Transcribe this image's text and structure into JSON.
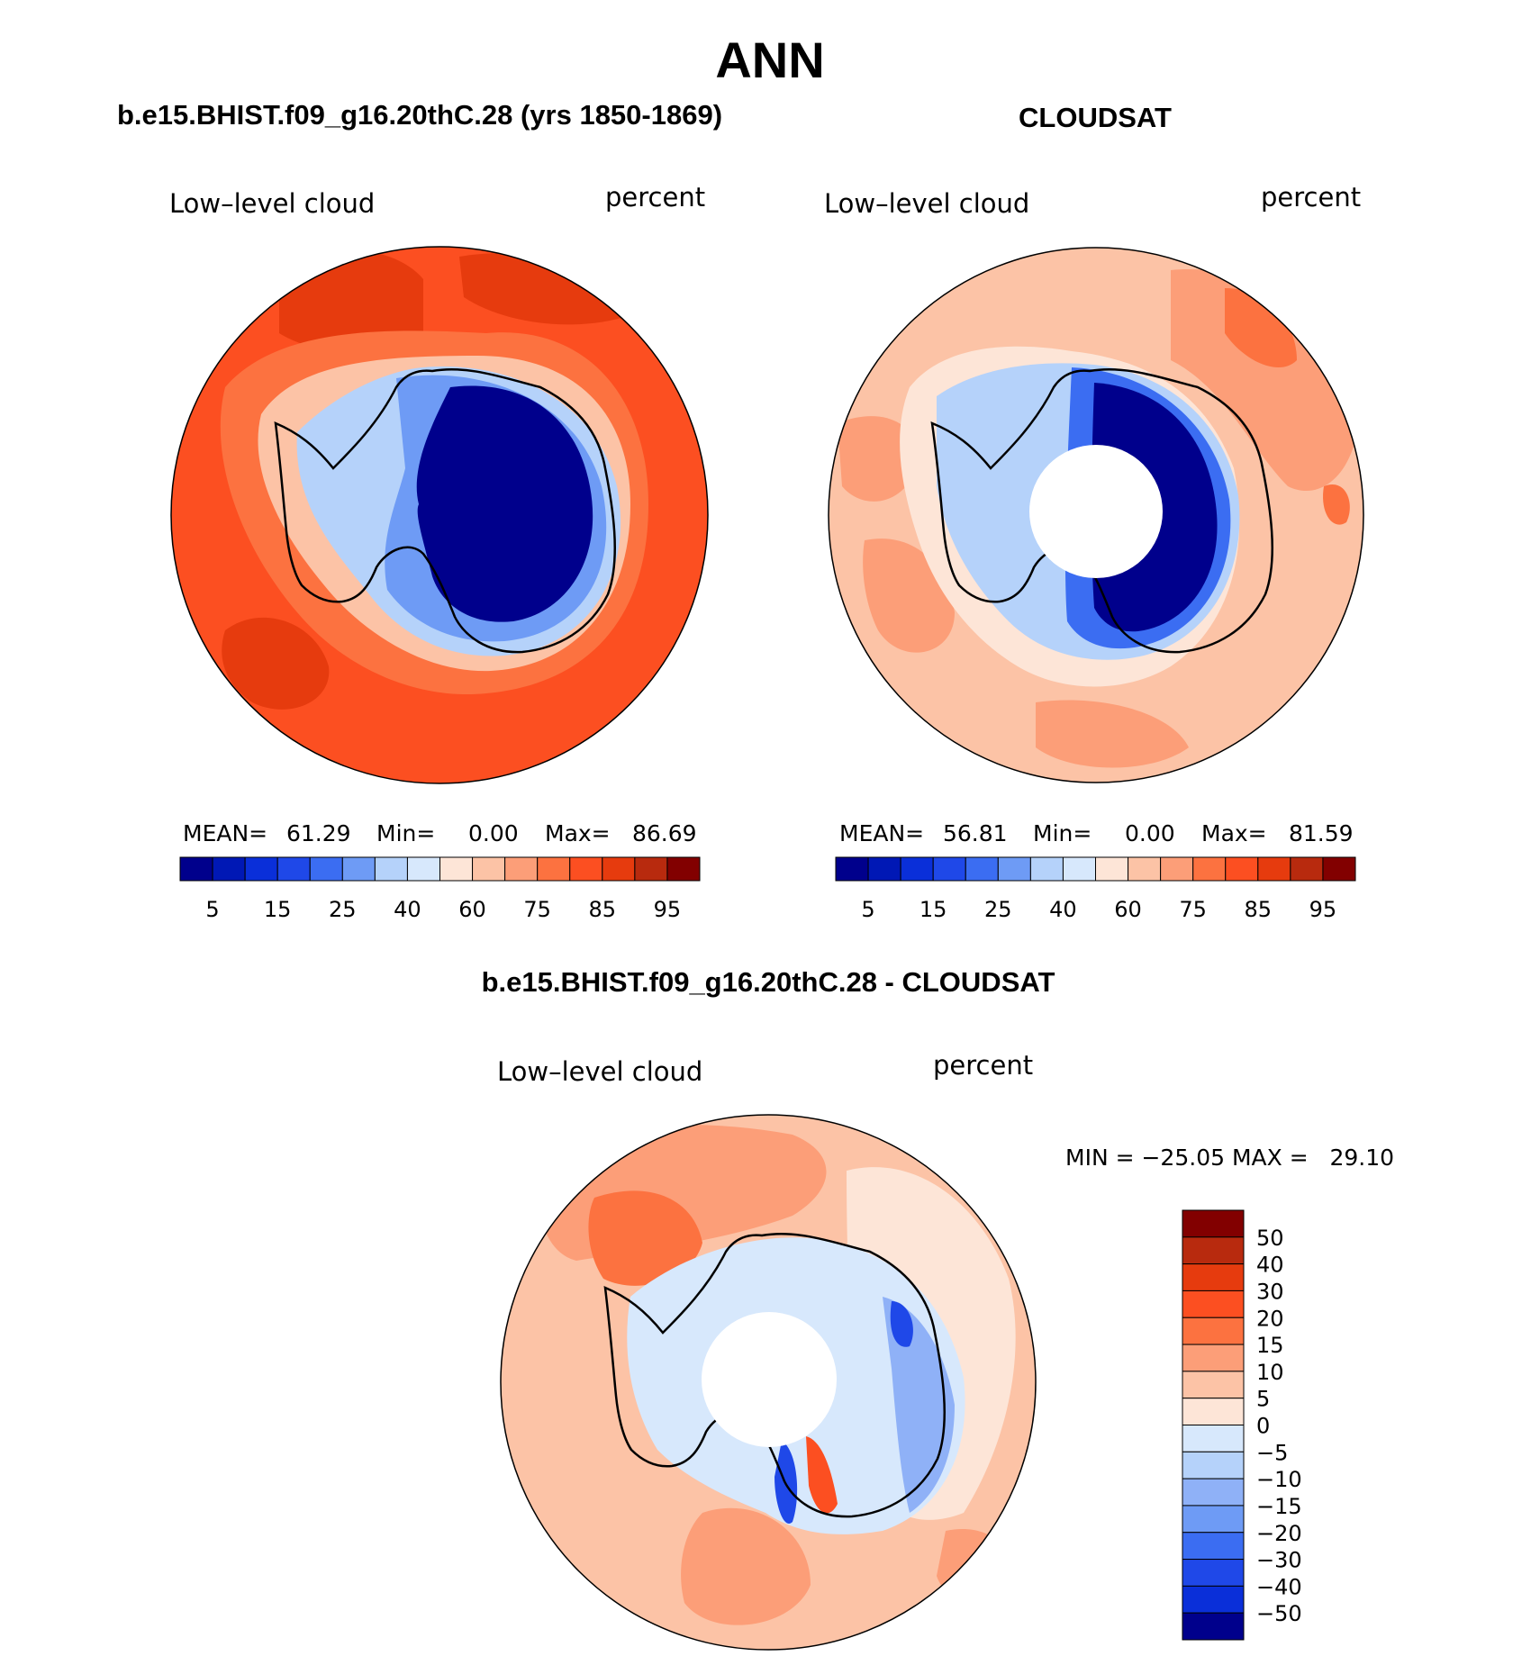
{
  "title": "ANN",
  "panels": [
    {
      "id": "model",
      "header": "b.e15.BHIST.f09_g16.20thC.28 (yrs 1850-1869)",
      "variable": "Low–level cloud",
      "units": "percent",
      "stats": {
        "mean_label": "MEAN=",
        "mean": "61.29",
        "min_label": "Min=",
        "min": "0.00",
        "max_label": "Max=",
        "max": "86.69"
      },
      "background_color": "#fc4f21",
      "patches": [
        {
          "color": "#e63b0e",
          "role": "high-cloud-band"
        },
        {
          "color": "#fc7240",
          "role": "cloud-gradient"
        },
        {
          "color": "#fcc3a6",
          "role": "coastal-band"
        },
        {
          "color": "#b5d2fa",
          "role": "ice-edge"
        },
        {
          "color": "#6e9bf5",
          "role": "ice-mid"
        },
        {
          "color": "#00008c",
          "role": "ice-interior"
        }
      ],
      "has_pole_hole": false
    },
    {
      "id": "obs",
      "header": "CLOUDSAT",
      "variable": "Low–level cloud",
      "units": "percent",
      "stats": {
        "mean_label": "MEAN=",
        "mean": "56.81",
        "min_label": "Min=",
        "min": "0.00",
        "max_label": "Max=",
        "max": "81.59"
      },
      "background_color": "#fcc3a6",
      "patches": [
        {
          "color": "#fc9e78",
          "role": "cloud-band"
        },
        {
          "color": "#fc7240",
          "role": "cloud-high"
        },
        {
          "color": "#fde5d7",
          "role": "coastal-band"
        },
        {
          "color": "#b5d2fa",
          "role": "ice-edge"
        },
        {
          "color": "#3b6df2",
          "role": "ice-mid"
        },
        {
          "color": "#00008c",
          "role": "ice-interior"
        }
      ],
      "has_pole_hole": true
    },
    {
      "id": "diff",
      "header": "b.e15.BHIST.f09_g16.20thC.28 - CLOUDSAT",
      "variable": "Low–level cloud",
      "units": "percent",
      "minmax_text": "MIN = −25.05 MAX =   29.10",
      "background_color": "#fcc3a6",
      "patches": [
        {
          "color": "#fc9e78",
          "role": "positive-band"
        },
        {
          "color": "#fc7240",
          "role": "positive-high"
        },
        {
          "color": "#fde5d7",
          "role": "near-zero"
        },
        {
          "color": "#d7e8fc",
          "role": "small-negative"
        },
        {
          "color": "#8fb1f7",
          "role": "negative-mid"
        },
        {
          "color": "#1f48e8",
          "role": "negative-strong"
        },
        {
          "color": "#fc4f21",
          "role": "positive-strong"
        }
      ],
      "has_pole_hole": true
    }
  ],
  "colorbar_top": {
    "colors": [
      "#00008c",
      "#0018b5",
      "#0a2fd9",
      "#1f48e8",
      "#3b6df2",
      "#6e9bf5",
      "#b5d2fa",
      "#d7e8fc",
      "#fde5d7",
      "#fcc3a6",
      "#fc9e78",
      "#fc7240",
      "#fc4f21",
      "#e63b0e",
      "#b82a0e",
      "#820000"
    ],
    "labels": [
      "5",
      "15",
      "25",
      "40",
      "60",
      "75",
      "85",
      "95"
    ]
  },
  "colorbar_diff": {
    "colors_top_to_bottom": [
      "#820000",
      "#b82a0e",
      "#e63b0e",
      "#fc4f21",
      "#fc7240",
      "#fc9e78",
      "#fcc3a6",
      "#fde5d7",
      "#d7e8fc",
      "#b5d2fa",
      "#8fb1f7",
      "#6e9bf5",
      "#3b6df2",
      "#1f48e8",
      "#0a2fd9",
      "#00008c"
    ],
    "labels_top_to_bottom": [
      "50",
      "40",
      "30",
      "20",
      "15",
      "10",
      "5",
      "0",
      "−5",
      "−10",
      "−15",
      "−20",
      "−30",
      "−40",
      "−50"
    ]
  }
}
